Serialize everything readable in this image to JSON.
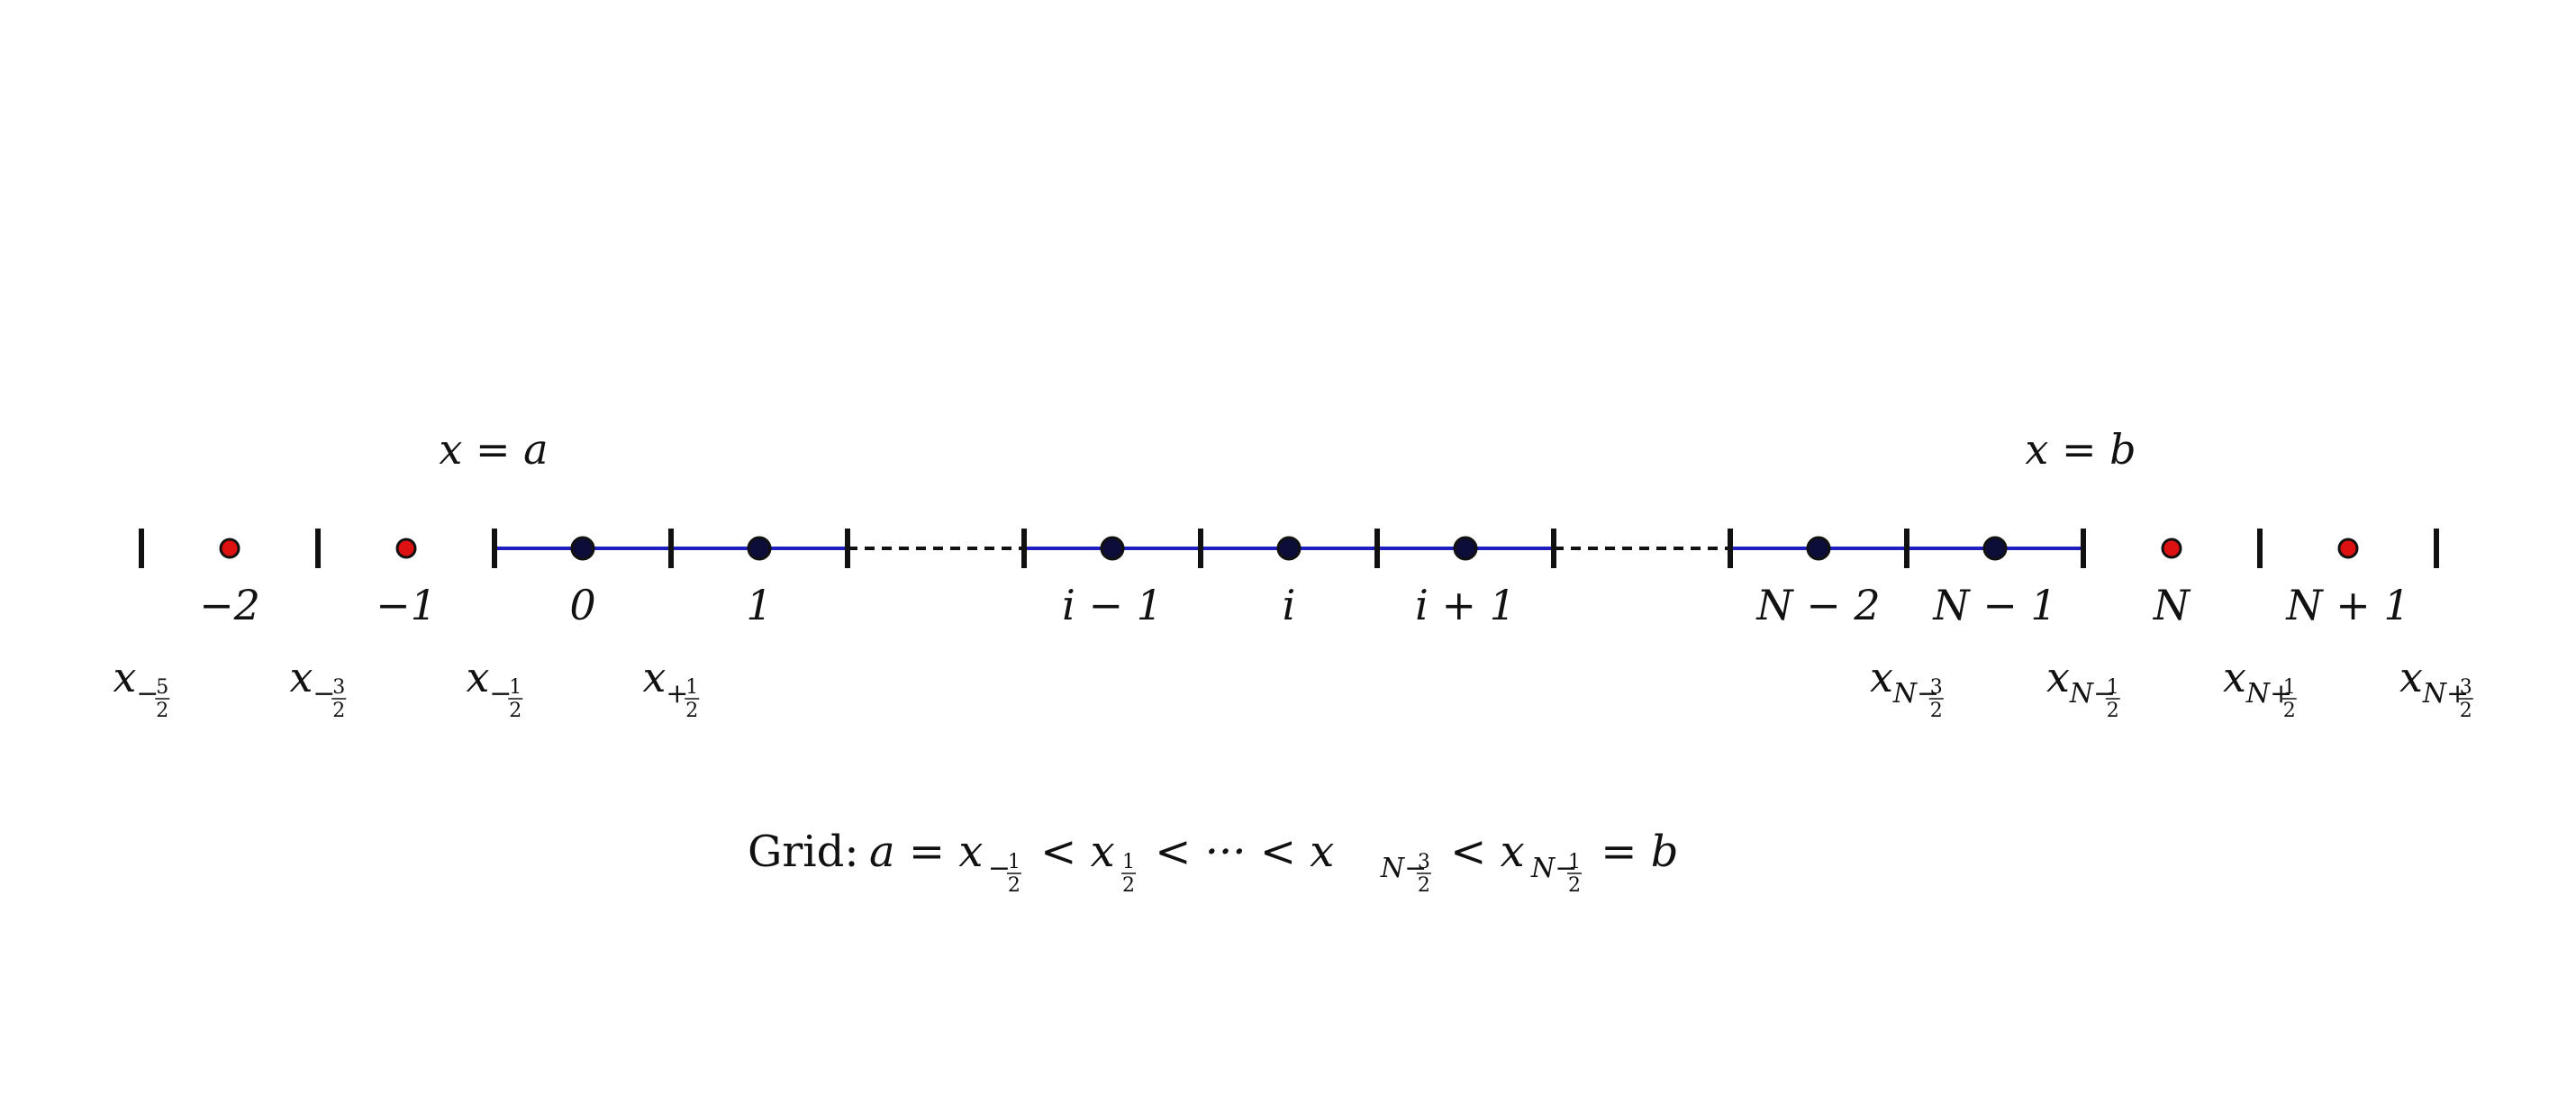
{
  "colors": {
    "interior_line": "#1f1fbf",
    "interior_point": "#0d0d3a",
    "ghost_point": "#dd1111",
    "tick": "#111111",
    "dashed": "#111111"
  },
  "boundaries": {
    "left": "x = a",
    "right": "x = b"
  },
  "cells": [
    {
      "label": "−2",
      "kind": "ghost"
    },
    {
      "label": "−1",
      "kind": "ghost"
    },
    {
      "label": "0",
      "kind": "interior"
    },
    {
      "label": "1",
      "kind": "interior"
    },
    {
      "label": "",
      "kind": "gap"
    },
    {
      "label": "i − 1",
      "kind": "interior"
    },
    {
      "label": "i",
      "kind": "interior"
    },
    {
      "label": "i + 1",
      "kind": "interior"
    },
    {
      "label": "",
      "kind": "gap"
    },
    {
      "label": "N − 2",
      "kind": "interior"
    },
    {
      "label": "N − 1",
      "kind": "interior"
    },
    {
      "label": "N",
      "kind": "ghost"
    },
    {
      "label": "N + 1",
      "kind": "ghost"
    }
  ],
  "interfaces": [
    {
      "base": "x",
      "sign": "−",
      "num": "5",
      "den": "2"
    },
    {
      "base": "x",
      "sign": "−",
      "num": "3",
      "den": "2"
    },
    {
      "base": "x",
      "sign": "−",
      "num": "1",
      "den": "2"
    },
    {
      "base": "x",
      "sign": "+",
      "num": "1",
      "den": "2"
    },
    {
      "base": "x",
      "sign": "N−",
      "num": "3",
      "den": "2"
    },
    {
      "base": "x",
      "sign": "N−",
      "num": "1",
      "den": "2"
    },
    {
      "base": "x",
      "sign": "N+",
      "num": "1",
      "den": "2"
    },
    {
      "base": "x",
      "sign": "N+",
      "num": "3",
      "den": "2"
    }
  ],
  "grid_caption": {
    "prefix": "Grid:",
    "parts": [
      {
        "text": "a = x"
      },
      {
        "sub_sign": "−",
        "num": "1",
        "den": "2"
      },
      {
        "text": " < x"
      },
      {
        "sub_sign": "",
        "num": "1",
        "den": "2"
      },
      {
        "text": " < ··· < x"
      },
      {
        "sub_sign": "N−",
        "num": "3",
        "den": "2"
      },
      {
        "text": " < x"
      },
      {
        "sub_sign": "N−",
        "num": "1",
        "den": "2"
      },
      {
        "text": " = b"
      }
    ]
  }
}
